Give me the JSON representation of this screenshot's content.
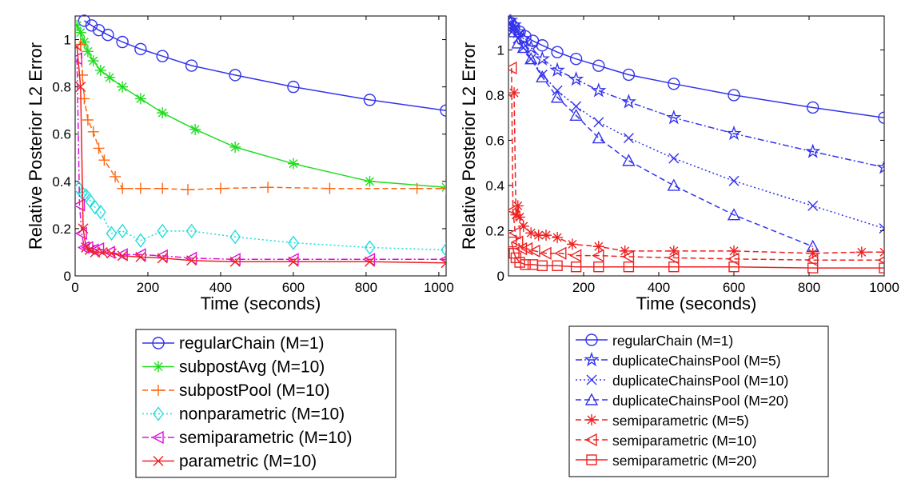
{
  "chart_data": [
    {
      "type": "line",
      "xlabel": "Time (seconds)",
      "ylabel": "Relative Posterior L2 Error",
      "xlim": [
        0,
        1020
      ],
      "ylim": [
        0,
        1.1
      ],
      "xticks": [
        0,
        200,
        400,
        600,
        800,
        1000
      ],
      "yticks": [
        0,
        0.2,
        0.4,
        0.6,
        0.8,
        1
      ],
      "xtick_labels": [
        "0",
        "200",
        "400",
        "600",
        "800",
        "1000"
      ],
      "ytick_labels": [
        "0",
        "0.2",
        "0.4",
        "0.6",
        "0.8",
        "1"
      ],
      "grid": false,
      "legend_placement": "below",
      "series": [
        {
          "name": "regularChain (M=1)",
          "color": "#3333ee",
          "dash": "solid",
          "marker": "circle",
          "x": [
            25,
            45,
            65,
            90,
            130,
            180,
            240,
            320,
            440,
            600,
            810,
            1020
          ],
          "y": [
            1.08,
            1.06,
            1.04,
            1.02,
            0.99,
            0.96,
            0.93,
            0.89,
            0.85,
            0.8,
            0.745,
            0.7
          ]
        },
        {
          "name": "subpostAvg (M=10)",
          "color": "#22dd22",
          "dash": "solid",
          "marker": "asterisk",
          "x": [
            5,
            15,
            25,
            35,
            50,
            70,
            95,
            130,
            180,
            240,
            330,
            440,
            600,
            810,
            1020
          ],
          "y": [
            1.06,
            1.03,
            0.99,
            0.95,
            0.91,
            0.87,
            0.84,
            0.8,
            0.75,
            0.69,
            0.62,
            0.545,
            0.475,
            0.4,
            0.375
          ]
        },
        {
          "name": "subpostPool (M=10)",
          "color": "#ff6611",
          "dash": "dashed",
          "marker": "plus",
          "x": [
            15,
            20,
            25,
            35,
            50,
            65,
            80,
            110,
            130,
            180,
            240,
            310,
            400,
            530,
            700,
            940,
            1020
          ],
          "y": [
            0.98,
            0.85,
            0.75,
            0.66,
            0.61,
            0.54,
            0.49,
            0.42,
            0.37,
            0.37,
            0.37,
            0.365,
            0.37,
            0.375,
            0.37,
            0.37,
            0.37
          ]
        },
        {
          "name": "nonparametric (M=10)",
          "color": "#22dddd",
          "dash": "dotted",
          "marker": "diamond",
          "x": [
            10,
            20,
            30,
            40,
            55,
            70,
            100,
            130,
            180,
            240,
            320,
            440,
            600,
            810,
            1020
          ],
          "y": [
            0.37,
            0.35,
            0.34,
            0.32,
            0.29,
            0.27,
            0.18,
            0.19,
            0.15,
            0.19,
            0.19,
            0.165,
            0.14,
            0.12,
            0.11
          ]
        },
        {
          "name": "semiparametric (M=10)",
          "color": "#dd11dd",
          "dash": "dashdot",
          "marker": "triangle-left",
          "x": [
            5,
            12,
            18,
            25,
            35,
            50,
            65,
            95,
            130,
            180,
            240,
            320,
            440,
            600,
            810,
            1020
          ],
          "y": [
            0.92,
            0.3,
            0.18,
            0.12,
            0.12,
            0.11,
            0.115,
            0.1,
            0.09,
            0.09,
            0.085,
            0.075,
            0.07,
            0.07,
            0.07,
            0.07
          ]
        },
        {
          "name": "parametric (M=10)",
          "color": "#ee2222",
          "dash": "solid",
          "marker": "x",
          "x": [
            5,
            15,
            22,
            30,
            40,
            55,
            75,
            100,
            130,
            180,
            240,
            320,
            440,
            600,
            810,
            1020
          ],
          "y": [
            0.97,
            0.8,
            0.2,
            0.12,
            0.11,
            0.1,
            0.1,
            0.095,
            0.085,
            0.08,
            0.075,
            0.065,
            0.06,
            0.06,
            0.06,
            0.055
          ]
        }
      ]
    },
    {
      "type": "line",
      "xlabel": "Time (seconds)",
      "ylabel": "Relative Posterior L2 Error",
      "xlim": [
        0,
        1000
      ],
      "ylim": [
        0,
        1.15
      ],
      "xticks": [
        200,
        400,
        600,
        800,
        1000
      ],
      "yticks": [
        0,
        0.2,
        0.4,
        0.6,
        0.8,
        1
      ],
      "xtick_labels": [
        "200",
        "400",
        "600",
        "800",
        "1000"
      ],
      "ytick_labels": [
        "0",
        "0.2",
        "0.4",
        "0.6",
        "0.8",
        "1"
      ],
      "grid": false,
      "legend_placement": "below",
      "series": [
        {
          "name": "regularChain (M=1)",
          "color": "#3333ee",
          "dash": "solid",
          "marker": "circle",
          "x": [
            5,
            15,
            30,
            45,
            65,
            90,
            130,
            180,
            240,
            320,
            440,
            600,
            810,
            1000
          ],
          "y": [
            1.12,
            1.1,
            1.08,
            1.06,
            1.04,
            1.02,
            0.99,
            0.96,
            0.93,
            0.89,
            0.85,
            0.8,
            0.745,
            0.7
          ]
        },
        {
          "name": "duplicateChainsPool (M=5)",
          "color": "#3333ee",
          "dash": "dashdot",
          "marker": "star",
          "x": [
            5,
            15,
            25,
            40,
            60,
            90,
            130,
            180,
            240,
            320,
            440,
            600,
            810,
            1000
          ],
          "y": [
            1.13,
            1.11,
            1.08,
            1.05,
            1.01,
            0.96,
            0.91,
            0.87,
            0.82,
            0.77,
            0.7,
            0.63,
            0.55,
            0.48
          ]
        },
        {
          "name": "duplicateChainsPool (M=10)",
          "color": "#3333ee",
          "dash": "dotted",
          "marker": "x",
          "x": [
            5,
            15,
            25,
            40,
            60,
            90,
            130,
            180,
            240,
            320,
            440,
            600,
            810,
            1000
          ],
          "y": [
            1.12,
            1.09,
            1.05,
            1.01,
            0.96,
            0.89,
            0.82,
            0.75,
            0.68,
            0.61,
            0.52,
            0.42,
            0.31,
            0.21
          ]
        },
        {
          "name": "duplicateChainsPool (M=20)",
          "color": "#3333ee",
          "dash": "dashed",
          "marker": "triangle-up",
          "x": [
            5,
            15,
            25,
            40,
            60,
            90,
            130,
            180,
            240,
            320,
            440,
            600,
            810
          ],
          "y": [
            1.12,
            1.08,
            1.03,
            1.01,
            0.96,
            0.88,
            0.79,
            0.71,
            0.61,
            0.51,
            0.4,
            0.27,
            0.13
          ]
        },
        {
          "name": "semiparametric (M=5)",
          "color": "#ee2222",
          "dash": "dashed",
          "marker": "asterisk",
          "x": [
            15,
            20,
            25,
            30,
            40,
            60,
            80,
            100,
            130,
            170,
            240,
            310,
            440,
            600,
            810,
            940,
            1000
          ],
          "y": [
            0.81,
            0.27,
            0.31,
            0.26,
            0.22,
            0.19,
            0.18,
            0.18,
            0.17,
            0.14,
            0.13,
            0.11,
            0.11,
            0.11,
            0.1,
            0.105,
            0.105
          ]
        },
        {
          "name": "semiparametric (M=10)",
          "color": "#ee2222",
          "dash": "dashed",
          "marker": "triangle-left",
          "x": [
            8,
            12,
            18,
            25,
            35,
            50,
            70,
            100,
            140,
            180,
            240,
            320,
            440,
            600,
            810,
            1000
          ],
          "y": [
            0.92,
            0.29,
            0.19,
            0.15,
            0.12,
            0.12,
            0.11,
            0.1,
            0.1,
            0.09,
            0.09,
            0.085,
            0.08,
            0.075,
            0.07,
            0.07
          ]
        },
        {
          "name": "semiparametric (M=20)",
          "color": "#ee2222",
          "dash": "solid",
          "marker": "square",
          "x": [
            8,
            15,
            20,
            30,
            45,
            65,
            90,
            130,
            180,
            240,
            320,
            440,
            600,
            810,
            1000
          ],
          "y": [
            0.15,
            0.1,
            0.08,
            0.06,
            0.05,
            0.05,
            0.045,
            0.045,
            0.04,
            0.04,
            0.04,
            0.04,
            0.04,
            0.035,
            0.035
          ]
        }
      ]
    }
  ]
}
